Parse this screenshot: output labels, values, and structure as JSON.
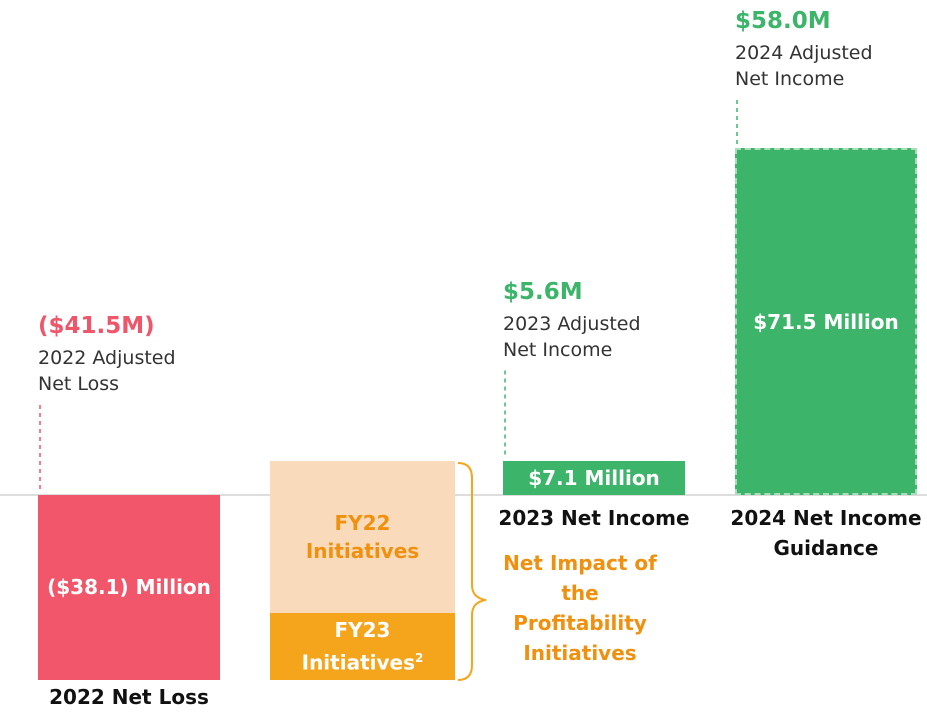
{
  "chart_data": {
    "type": "waterfall",
    "categories": [
      "2022 Net Loss",
      "2023 Net Income",
      "2024 Net Income Guidance"
    ],
    "values": [
      -38.1,
      7.1,
      71.5
    ],
    "value_labels": [
      "($38.1) Million",
      "$7.1 Million",
      "$71.5 Million"
    ],
    "colors": [
      "#f2566a",
      "#3cb56a",
      "#3cb56a"
    ],
    "annotations": [
      {
        "value": "($41.5M)",
        "text": "2022 Adjusted Net Loss",
        "color": "#f0566a"
      },
      {
        "value": "$5.6M",
        "text": "2023 Adjusted Net Income",
        "color": "#3cb56a"
      },
      {
        "value": "$58.0M",
        "text": "2024 Adjusted Net Income",
        "color": "#3cb56a"
      }
    ],
    "initiatives": {
      "label": "Net Impact of the Profitability Initiatives",
      "color": "#f0900f",
      "segments": [
        {
          "name": "FY22 Initiatives",
          "value": 31.5,
          "color": "#f9dbbb",
          "text_color": "#f0900f"
        },
        {
          "name": "FY23 Initiatives",
          "value": 13.7,
          "color": "#f5a51c",
          "text_color": "#ffffff",
          "footnote": "2"
        }
      ]
    }
  }
}
